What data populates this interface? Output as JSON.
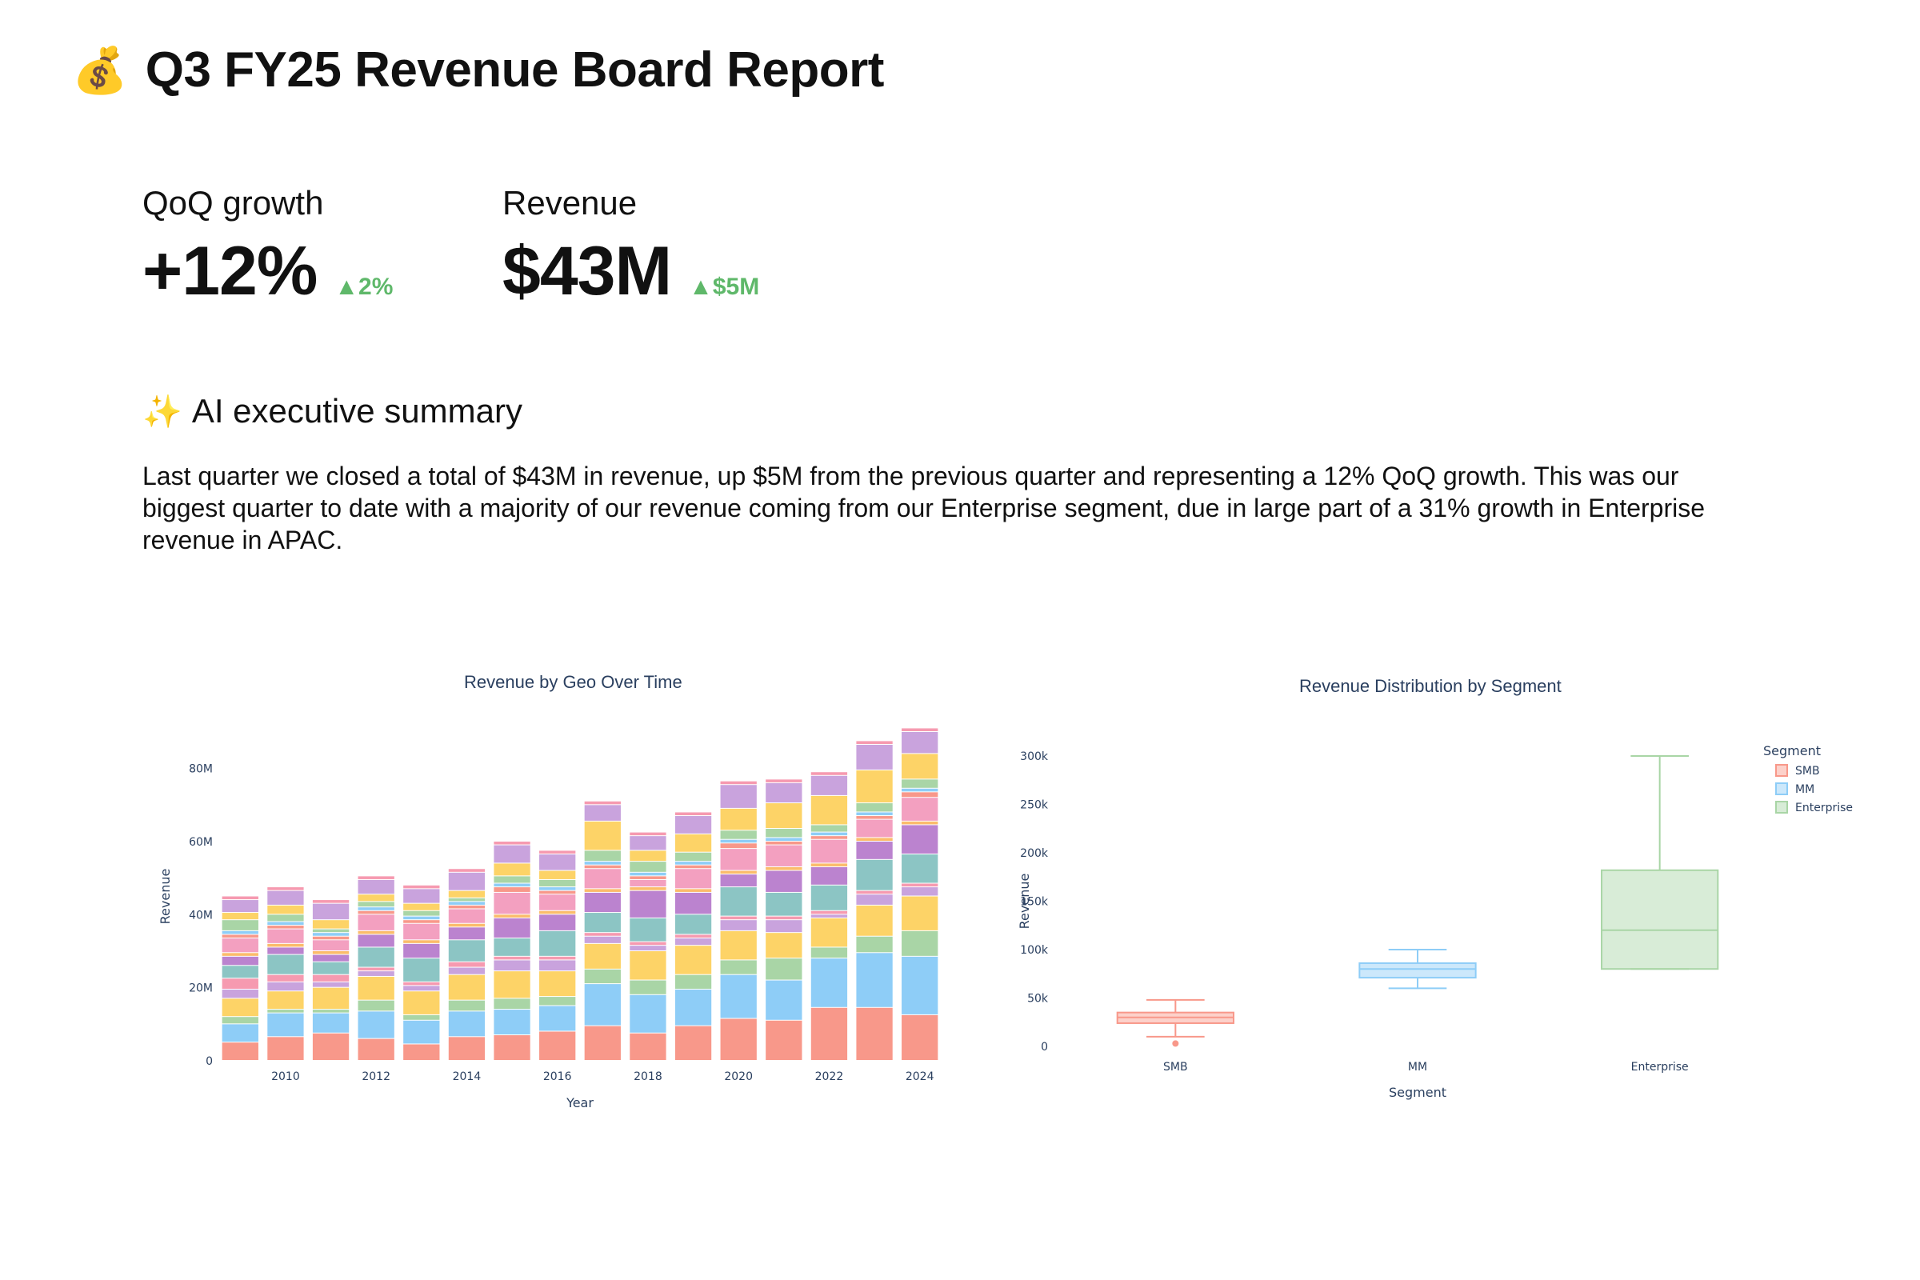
{
  "header": {
    "emoji": "💰",
    "title": "Q3 FY25 Revenue Board Report"
  },
  "metrics": [
    {
      "label": "QoQ growth",
      "value": "+12%",
      "delta": "▲2%"
    },
    {
      "label": "Revenue",
      "value": "$43M",
      "delta": "▲$5M"
    }
  ],
  "summary": {
    "emoji": "✨",
    "title": "AI executive summary",
    "body": "Last quarter we closed a total of $43M in revenue, up $5M from the previous quarter and representing a 12% QoQ growth. This was  our biggest quarter to date with a majority of our revenue coming from our Enterprise segment, due in large part of a 31% growth in Enterprise revenue in APAC."
  },
  "colors": {
    "palette": [
      "#f8988a",
      "#8ecdf7",
      "#a9d5a6",
      "#fdd367",
      "#c9a3dd",
      "#f69ab0",
      "#8cc5c4",
      "#bb83cf",
      "#fbbc6b",
      "#f3a0c0"
    ],
    "axis_text": "#2a3f5f",
    "smb": "#f8988a",
    "mm": "#8ecdf7",
    "enterprise": "#a9d5a6",
    "delta_positive": "#5fb86a"
  },
  "chart_data": [
    {
      "type": "bar",
      "stacked": true,
      "title": "Revenue by Geo Over Time",
      "xlabel": "Year",
      "ylabel": "Revenue",
      "ylim": [
        0,
        90000000
      ],
      "yticks": [
        0,
        20000000,
        40000000,
        60000000,
        80000000
      ],
      "ytick_labels": [
        "0",
        "20M",
        "40M",
        "60M",
        "80M"
      ],
      "xtick_labels": [
        "2010",
        "2012",
        "2014",
        "2016",
        "2018",
        "2020",
        "2022",
        "2024"
      ],
      "xticks": [
        2010,
        2012,
        2014,
        2016,
        2018,
        2020,
        2022,
        2024
      ],
      "categories": [
        2009,
        2010,
        2011,
        2012,
        2013,
        2014,
        2015,
        2016,
        2017,
        2018,
        2019,
        2020,
        2021,
        2022,
        2023,
        2024
      ],
      "series": [
        {
          "values": [
            5,
            6.5,
            7.5,
            6,
            4.5,
            6.5,
            7,
            8,
            9.5,
            7.5,
            9.5,
            11.5,
            11,
            14.5,
            14.5,
            12.5
          ]
        },
        {
          "values": [
            5,
            6.5,
            5.5,
            7.5,
            6.5,
            7,
            7,
            7,
            11.5,
            10.5,
            10,
            12,
            11,
            13.5,
            15,
            16
          ]
        },
        {
          "values": [
            2,
            1,
            1,
            3,
            1.5,
            3,
            3,
            2.5,
            4,
            4,
            4,
            4,
            6,
            3,
            4.5,
            7
          ]
        },
        {
          "values": [
            5,
            5,
            6,
            6.5,
            6.5,
            7,
            7.5,
            7,
            7,
            8,
            8,
            8,
            7,
            8,
            8.5,
            9.5
          ]
        },
        {
          "values": [
            2.5,
            2.5,
            1.5,
            1.5,
            1.5,
            2,
            3,
            3,
            2,
            1.5,
            2,
            3,
            3.5,
            1,
            3,
            2.5
          ]
        },
        {
          "values": [
            3,
            2,
            2,
            1,
            1,
            1.5,
            1,
            1,
            1,
            1,
            1,
            1,
            1,
            1,
            1,
            1
          ]
        },
        {
          "values": [
            3.5,
            5.5,
            3.5,
            5.5,
            6.5,
            6,
            5,
            7,
            5.5,
            6.5,
            5.5,
            8,
            6.5,
            7,
            8.5,
            8
          ]
        },
        {
          "values": [
            2.5,
            2,
            2,
            3.5,
            4,
            3.5,
            5.5,
            4.5,
            5.5,
            7.5,
            6,
            3.5,
            6,
            5,
            5,
            8
          ]
        },
        {
          "values": [
            1,
            1,
            1,
            1,
            1,
            1,
            1,
            1,
            1,
            1,
            1,
            1,
            1,
            1,
            1,
            1
          ]
        },
        {
          "values": [
            4,
            4,
            3,
            4.5,
            4.5,
            4,
            6,
            4.5,
            5.5,
            2,
            5.5,
            6,
            6,
            6.5,
            5,
            6.5
          ]
        },
        {
          "values": [
            1,
            1,
            1,
            1,
            1,
            1,
            1.5,
            1,
            1,
            1,
            1,
            1.5,
            1,
            1,
            1,
            1.5
          ]
        },
        {
          "values": [
            1,
            1,
            1,
            1,
            1,
            1,
            1,
            1,
            1,
            1,
            1,
            1,
            1,
            1,
            1,
            1
          ]
        },
        {
          "values": [
            3,
            2,
            1,
            1.5,
            1.5,
            1,
            2,
            2,
            3,
            3,
            2.5,
            2.5,
            2.5,
            2,
            2.5,
            2.5
          ]
        },
        {
          "values": [
            2,
            2.5,
            2.5,
            2,
            2,
            2,
            3.5,
            2.5,
            8,
            3,
            5,
            6,
            7,
            8,
            9,
            7
          ]
        },
        {
          "values": [
            3.5,
            4,
            4.5,
            4,
            4,
            5,
            5,
            4.5,
            4.5,
            4,
            5,
            6.5,
            5.5,
            5.5,
            7,
            6
          ]
        },
        {
          "values": [
            1,
            1,
            1,
            1,
            1,
            1,
            1,
            1,
            1,
            1,
            1,
            1,
            1,
            1,
            1,
            1
          ]
        }
      ]
    },
    {
      "type": "box",
      "title": "Revenue Distribution by Segment",
      "xlabel": "Segment",
      "ylabel": "Revenue",
      "ylim": [
        0,
        300000
      ],
      "yticks": [
        0,
        50000,
        100000,
        150000,
        200000,
        250000,
        300000
      ],
      "ytick_labels": [
        "0",
        "50k",
        "100k",
        "150k",
        "200k",
        "250k",
        "300k"
      ],
      "legend": {
        "title": "Segment",
        "placement": "top-right"
      },
      "categories": [
        "SMB",
        "MM",
        "Enterprise"
      ],
      "series": [
        {
          "name": "SMB",
          "min": 10000,
          "q1": 24000,
          "median": 30000,
          "q3": 35000,
          "max": 48000,
          "outliers": [
            3000
          ]
        },
        {
          "name": "MM",
          "min": 60000,
          "q1": 71000,
          "median": 80000,
          "q3": 86000,
          "max": 100000,
          "outliers": []
        },
        {
          "name": "Enterprise",
          "min": 80000,
          "q1": 80000,
          "median": 120000,
          "q3": 182000,
          "max": 300000,
          "outliers": []
        }
      ]
    }
  ]
}
